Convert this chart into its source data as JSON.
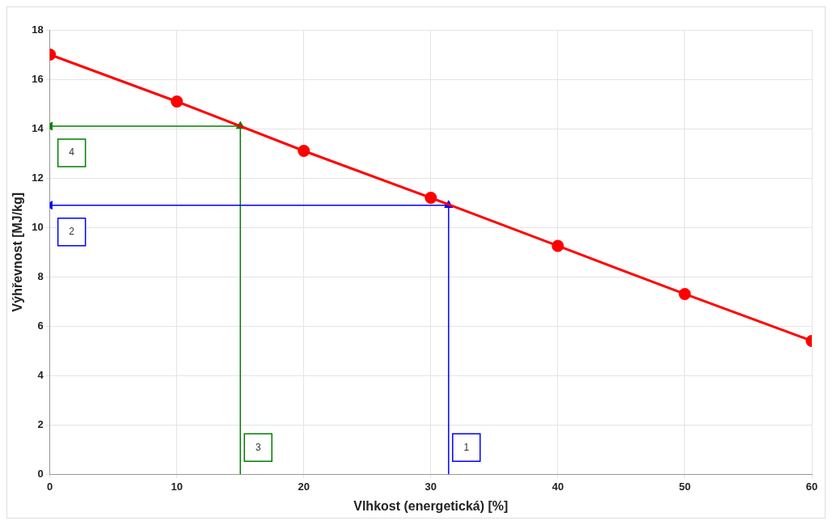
{
  "chart_data": {
    "type": "line",
    "xlabel": "Vlhkost (energetická) [%]",
    "ylabel": "Výhřevnost [MJ/kg]",
    "xlim": [
      0,
      60
    ],
    "xticks": [
      0,
      10,
      20,
      30,
      40,
      50,
      60
    ],
    "ylim": [
      0,
      18
    ],
    "yticks": [
      0,
      2,
      4,
      6,
      8,
      10,
      12,
      14,
      16,
      18
    ],
    "grid": true,
    "legend": false,
    "series": [
      {
        "color": "#ff0000",
        "x": [
          0,
          10,
          20,
          30,
          40,
          50,
          60
        ],
        "values": [
          17,
          15.1,
          13.1,
          11.2,
          9.25,
          7.3,
          5.4
        ],
        "marker": "circle"
      },
      {
        "name": "1",
        "color": "#0000ff",
        "x": [
          31.4,
          31.4
        ],
        "values": [
          0,
          10.9
        ],
        "marker": "triangle"
      },
      {
        "name": "2",
        "color": "#0000ff",
        "x": [
          31.4,
          0
        ],
        "values": [
          10.9,
          10.9
        ],
        "marker": "triangle"
      },
      {
        "name": "3",
        "color": "#008000",
        "x": [
          15,
          15
        ],
        "values": [
          0,
          14.1
        ],
        "marker": "triangle"
      },
      {
        "name": "4",
        "color": "#008000",
        "x": [
          15,
          0
        ],
        "values": [
          14.1,
          14.1
        ],
        "marker": "triangle"
      }
    ]
  }
}
